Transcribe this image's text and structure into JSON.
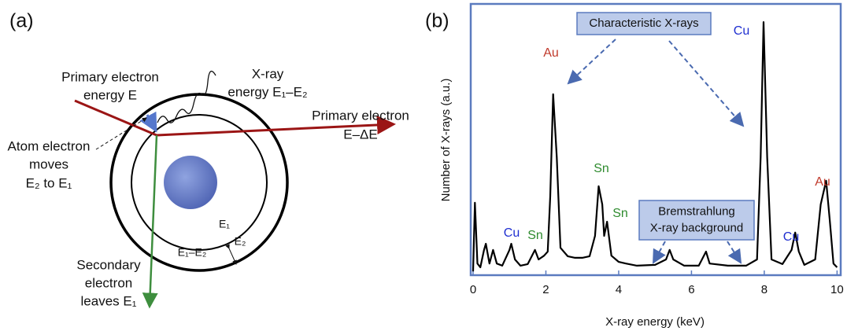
{
  "panels": {
    "a": "(a)",
    "b": "(b)"
  },
  "diagram": {
    "primary_electron": [
      "Primary electron",
      "energy E"
    ],
    "xray": [
      "X-ray",
      "energy E₁–E₂"
    ],
    "primary_out": [
      "Primary electron",
      "E–ΔE"
    ],
    "atom_electron": [
      "Atom electron",
      "moves",
      "E₂ to E₁"
    ],
    "secondary": [
      "Secondary",
      "electron",
      "leaves E₁"
    ],
    "shells": [
      "E₁",
      "E₂",
      "E₁–E₂"
    ]
  },
  "chart_data": {
    "type": "line",
    "xlabel": "X-ray energy (keV)",
    "ylabel": "Number of X-rays (a.u.)",
    "color": "#000000",
    "x": [
      0,
      0.05,
      0.12,
      0.2,
      0.3,
      0.35,
      0.45,
      0.55,
      0.65,
      0.8,
      1.0,
      1.05,
      1.15,
      1.3,
      1.5,
      1.7,
      1.8,
      1.95,
      2.05,
      2.12,
      2.2,
      2.3,
      2.4,
      2.6,
      2.8,
      3.0,
      3.2,
      3.35,
      3.45,
      3.55,
      3.6,
      3.68,
      3.8,
      4.0,
      4.2,
      4.5,
      5.0,
      5.3,
      5.4,
      5.5,
      5.8,
      6.2,
      6.4,
      6.5,
      7.0,
      7.5,
      7.8,
      7.9,
      7.98,
      8.08,
      8.2,
      8.5,
      8.75,
      8.85,
      8.95,
      9.1,
      9.4,
      9.55,
      9.7,
      9.8,
      9.9,
      10.0
    ],
    "values": [
      1.4,
      26.7,
      4.3,
      2.9,
      9.3,
      11.6,
      4.3,
      9.3,
      4.3,
      3.5,
      9.3,
      11.6,
      5.8,
      3.5,
      4.1,
      9.3,
      5.8,
      7.2,
      8.7,
      29.0,
      66.7,
      43.5,
      10.1,
      7.0,
      6.4,
      6.4,
      7.0,
      14.5,
      32.8,
      26.1,
      14.5,
      19.7,
      7.2,
      4.9,
      4.3,
      3.5,
      3.8,
      5.8,
      9.3,
      5.8,
      3.5,
      3.5,
      8.7,
      4.3,
      3.5,
      3.5,
      5.8,
      43.5,
      93.3,
      43.5,
      5.8,
      4.1,
      9.3,
      15.7,
      8.7,
      3.8,
      5.8,
      26.1,
      34.8,
      20.3,
      4.3,
      2.9
    ],
    "xlim": [
      0,
      10.1
    ],
    "ylim": [
      0,
      100
    ],
    "xticks": [
      0,
      2,
      4,
      6,
      8,
      10
    ],
    "grid": false,
    "annotations": [
      {
        "text": "Au",
        "color": "#c0392b"
      },
      {
        "text": "Cu",
        "color": "#1f2fd0"
      },
      {
        "text": "Sn",
        "color": "#2e8b2e"
      },
      {
        "text": "Sn",
        "color": "#2e8b2e"
      },
      {
        "text": "Cu",
        "color": "#1f2fd0"
      },
      {
        "text": "Sn",
        "color": "#2e8b2e"
      },
      {
        "text": "Cu",
        "color": "#1f2fd0"
      },
      {
        "text": "Au",
        "color": "#c0392b"
      }
    ],
    "callouts": [
      [
        "Characteristic X-rays"
      ],
      [
        "Bremstrahlung",
        "X-ray background"
      ]
    ]
  }
}
